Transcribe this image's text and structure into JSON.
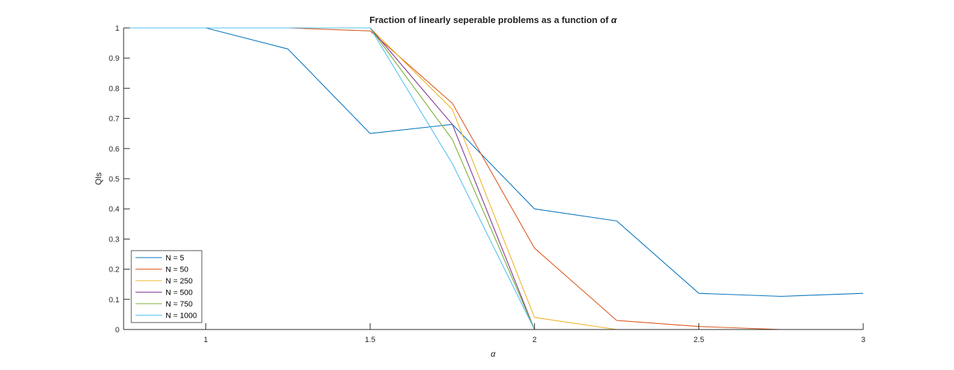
{
  "chart_data": {
    "type": "line",
    "title_prefix": "Fraction of linearly seperable problems as a function of",
    "title_symbol": "α",
    "xlabel": "α",
    "ylabel": "Qls",
    "xlim": [
      0.75,
      3
    ],
    "ylim": [
      0,
      1
    ],
    "xticks": [
      1,
      1.5,
      2,
      2.5,
      3
    ],
    "xtick_labels": [
      "1",
      "1.5",
      "2",
      "2.5",
      "3"
    ],
    "yticks": [
      0,
      0.1,
      0.2,
      0.3,
      0.4,
      0.5,
      0.6,
      0.7,
      0.8,
      0.9,
      1
    ],
    "ytick_labels": [
      "0",
      "0.1",
      "0.2",
      "0.3",
      "0.4",
      "0.5",
      "0.6",
      "0.7",
      "0.8",
      "0.9",
      "1"
    ],
    "grid": false,
    "legend_position": "bottom-left",
    "x": [
      0.75,
      1,
      1.25,
      1.5,
      1.75,
      2,
      2.25,
      2.5,
      2.75,
      3
    ],
    "series": [
      {
        "name": "N = 5",
        "color": "#0072BD",
        "values": [
          1,
          1,
          0.93,
          0.65,
          0.68,
          0.4,
          0.36,
          0.12,
          0.11,
          0.12
        ]
      },
      {
        "name": "N = 50",
        "color": "#D95319",
        "values": [
          1,
          1,
          1,
          0.99,
          0.75,
          0.27,
          0.03,
          0.01,
          0,
          0
        ]
      },
      {
        "name": "N = 250",
        "color": "#EDB120",
        "values": [
          1,
          1,
          1,
          1,
          0.73,
          0.04,
          0,
          0,
          0,
          0
        ]
      },
      {
        "name": "N = 500",
        "color": "#7E2F8E",
        "values": [
          1,
          1,
          1,
          1,
          0.68,
          0,
          0,
          0,
          0,
          0
        ]
      },
      {
        "name": "N = 750",
        "color": "#77AC30",
        "values": [
          1,
          1,
          1,
          1,
          0.63,
          0,
          0,
          0,
          0,
          0
        ]
      },
      {
        "name": "N = 1000",
        "color": "#4DBEEE",
        "values": [
          1,
          1,
          1,
          1,
          0.55,
          0,
          0,
          0,
          0,
          0
        ]
      }
    ]
  }
}
